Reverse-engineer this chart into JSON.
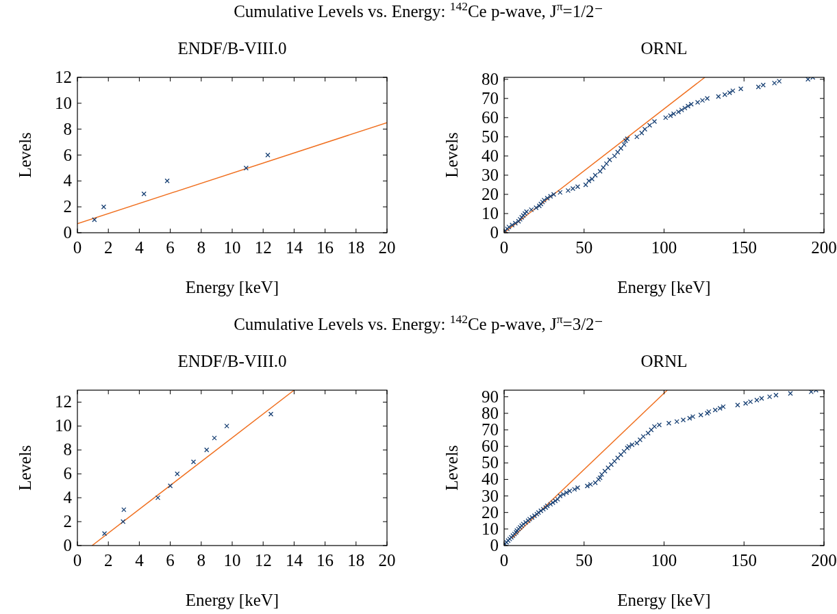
{
  "chart_data": [
    {
      "type": "scatter",
      "title": "Cumulative Levels vs. Energy: $^{142}$Ce p-wave, J$^{π}$=1/2⁻",
      "subtitle": "ENDF/B-VIII.0",
      "xlabel": "Energy [keV]",
      "ylabel": "Levels",
      "xlim": [
        0,
        20
      ],
      "ylim": [
        0,
        12
      ],
      "xticks": [
        0,
        2,
        4,
        6,
        8,
        10,
        12,
        14,
        16,
        18,
        20
      ],
      "yticks": [
        0,
        2,
        4,
        6,
        8,
        10,
        12
      ],
      "grid": false,
      "series": [
        {
          "type": "scatter",
          "marker": "cross",
          "color": "#163f73",
          "x": [
            1.1,
            1.7,
            4.3,
            5.8,
            10.9,
            12.3
          ],
          "values": [
            1,
            2,
            3,
            4,
            5,
            6
          ]
        },
        {
          "type": "line",
          "color": "#f07020",
          "x": [
            0,
            20
          ],
          "values": [
            0.7,
            8.5
          ]
        }
      ]
    },
    {
      "type": "scatter",
      "subtitle": "ORNL",
      "xlabel": "Energy [keV]",
      "ylabel": "Levels",
      "xlim": [
        0,
        200
      ],
      "ylim": [
        0,
        81
      ],
      "xticks": [
        0,
        50,
        100,
        150,
        200
      ],
      "yticks": [
        0,
        10,
        20,
        30,
        40,
        50,
        60,
        70,
        80
      ],
      "grid": false,
      "series": [
        {
          "type": "scatter",
          "marker": "cross",
          "color": "#163f73",
          "x": [
            0.5,
            2,
            3,
            5,
            7,
            9,
            10,
            11,
            12,
            13,
            14,
            17,
            20,
            22,
            23,
            24,
            25,
            27,
            29,
            31,
            35,
            40,
            43,
            46,
            51,
            53,
            55,
            57,
            60,
            62,
            64,
            66,
            69,
            71,
            73,
            75,
            76,
            77,
            83,
            86,
            88,
            91,
            94,
            101,
            104,
            106,
            109,
            111,
            113,
            115,
            117,
            121,
            124,
            127,
            134,
            138,
            141,
            143,
            148,
            159,
            162,
            169,
            172,
            190,
            193
          ],
          "values": [
            1,
            2,
            3,
            4,
            5,
            6,
            7,
            8,
            9,
            10,
            11,
            12,
            13,
            14,
            15,
            16,
            17,
            18,
            19,
            20,
            21,
            22,
            23,
            24,
            25,
            27,
            28,
            30,
            32,
            34,
            36,
            38,
            40,
            42,
            44,
            46,
            48,
            49,
            50,
            52,
            54,
            56,
            58,
            60,
            61,
            62,
            63,
            64,
            65,
            66,
            67,
            68,
            69,
            70,
            71,
            72,
            73,
            74,
            75,
            76,
            77,
            78,
            79,
            80,
            81
          ]
        },
        {
          "type": "line",
          "color": "#f07020",
          "x": [
            0,
            125.5
          ],
          "values": [
            0,
            81
          ]
        }
      ]
    },
    {
      "type": "scatter",
      "title": "Cumulative Levels vs. Energy: $^{142}$Ce p-wave, J$^{π}$=3/2⁻",
      "subtitle": "ENDF/B-VIII.0",
      "xlabel": "Energy [keV]",
      "ylabel": "Levels",
      "xlim": [
        0,
        20
      ],
      "ylim": [
        0,
        13
      ],
      "xticks": [
        0,
        2,
        4,
        6,
        8,
        10,
        12,
        14,
        16,
        18,
        20
      ],
      "yticks": [
        0,
        2,
        4,
        6,
        8,
        10,
        12
      ],
      "grid": false,
      "series": [
        {
          "type": "scatter",
          "marker": "cross",
          "color": "#163f73",
          "x": [
            1.75,
            2.95,
            3.0,
            5.2,
            6.0,
            6.45,
            7.5,
            8.35,
            8.85,
            9.65,
            12.5
          ],
          "values": [
            1,
            2,
            3,
            4,
            5,
            6,
            7,
            8,
            9,
            10,
            11
          ]
        },
        {
          "type": "line",
          "color": "#f07020",
          "x": [
            0.95,
            14.0
          ],
          "values": [
            0,
            13
          ]
        }
      ]
    },
    {
      "type": "scatter",
      "subtitle": "ORNL",
      "xlabel": "Energy [keV]",
      "ylabel": "Levels",
      "xlim": [
        0,
        200
      ],
      "ylim": [
        0,
        94
      ],
      "xticks": [
        0,
        50,
        100,
        150,
        200
      ],
      "yticks": [
        0,
        10,
        20,
        30,
        40,
        50,
        60,
        70,
        80,
        90
      ],
      "grid": false,
      "series": [
        {
          "type": "scatter",
          "marker": "cross",
          "color": "#163f73",
          "x": [
            0.5,
            1.5,
            2.5,
            3.5,
            4.5,
            5.5,
            6.5,
            7.5,
            8,
            9,
            10,
            11,
            12,
            13.5,
            15,
            16,
            17.5,
            19,
            20.5,
            21.5,
            23,
            24.5,
            26,
            27,
            29,
            30.5,
            32,
            33.5,
            35,
            37,
            39,
            41,
            44,
            46,
            52,
            54,
            57,
            59,
            60,
            61,
            63,
            65,
            67,
            69,
            71,
            73,
            75,
            77,
            78,
            80,
            83,
            85,
            87,
            90,
            92,
            94,
            97,
            103,
            108,
            112,
            116,
            118,
            123,
            127,
            128,
            132,
            135,
            137,
            146,
            151,
            154,
            158,
            161,
            166,
            170,
            179,
            192,
            195
          ],
          "values": [
            1,
            2,
            3,
            4,
            5,
            6,
            7,
            8,
            9,
            10,
            11,
            12,
            13,
            14,
            15,
            16,
            17,
            18,
            19,
            20,
            21,
            22,
            23,
            24,
            25,
            26,
            27,
            28,
            30,
            31,
            32,
            33,
            34,
            35,
            36,
            37,
            38,
            40,
            41,
            43,
            45,
            47,
            49,
            51,
            53,
            55,
            57,
            59,
            60,
            61,
            62,
            64,
            66,
            68,
            70,
            72,
            73,
            74,
            75,
            76,
            77,
            78,
            79,
            80,
            81,
            82,
            83,
            84,
            85,
            86,
            87,
            88,
            89,
            90,
            91,
            92,
            93,
            94
          ]
        },
        {
          "type": "line",
          "color": "#f07020",
          "x": [
            5,
            102
          ],
          "values": [
            4.5,
            94
          ]
        }
      ]
    }
  ]
}
